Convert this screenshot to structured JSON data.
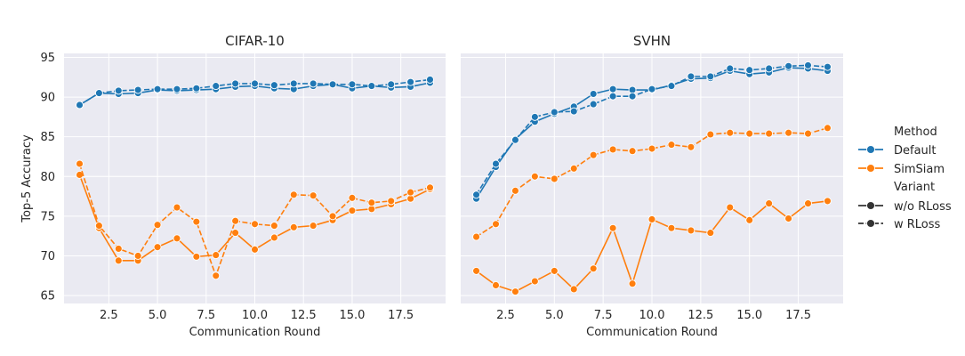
{
  "chart_data": {
    "type": "line",
    "ylabel": "Top-5 Accuracy",
    "xlabel": "Communication Round",
    "x": [
      1,
      2,
      3,
      4,
      5,
      6,
      7,
      8,
      9,
      10,
      11,
      12,
      13,
      14,
      15,
      16,
      17,
      18,
      19
    ],
    "xlim": [
      0.2,
      19.8
    ],
    "ylim": [
      64,
      95.5
    ],
    "xticks": [
      2.5,
      5.0,
      7.5,
      10.0,
      12.5,
      15.0,
      17.5
    ],
    "xtick_labels": [
      "2.5",
      "5.0",
      "7.5",
      "10.0",
      "12.5",
      "15.0",
      "17.5"
    ],
    "yticks": [
      65,
      70,
      75,
      80,
      85,
      90,
      95
    ],
    "ytick_labels": [
      "65",
      "70",
      "75",
      "80",
      "85",
      "90",
      "95"
    ],
    "grid": true,
    "legend": {
      "placement": "right",
      "method_title": "Method",
      "methods": [
        {
          "label": "Default",
          "color": "#1f77b4"
        },
        {
          "label": "SimSiam",
          "color": "#ff7f0e"
        }
      ],
      "variant_title": "Variant",
      "variants": [
        {
          "label": "w/o RLoss",
          "style": "solid"
        },
        {
          "label": "w RLoss",
          "style": "dashed"
        }
      ]
    },
    "panels": [
      {
        "title": "CIFAR-10",
        "series": [
          {
            "method": "Default",
            "variant": "w/o RLoss",
            "values": [
              89.0,
              90.5,
              90.4,
              90.5,
              90.9,
              90.8,
              90.9,
              91.0,
              91.3,
              91.4,
              91.1,
              91.0,
              91.4,
              91.6,
              91.1,
              91.4,
              91.2,
              91.3,
              91.8
            ]
          },
          {
            "method": "Default",
            "variant": "w RLoss",
            "values": [
              89.0,
              90.5,
              90.8,
              90.9,
              91.0,
              91.0,
              91.1,
              91.4,
              91.7,
              91.7,
              91.5,
              91.7,
              91.7,
              91.6,
              91.6,
              91.4,
              91.6,
              91.9,
              92.2
            ]
          },
          {
            "method": "SimSiam",
            "variant": "w/o RLoss",
            "values": [
              80.2,
              73.5,
              69.4,
              69.4,
              71.1,
              72.2,
              69.9,
              70.1,
              72.9,
              70.8,
              72.3,
              73.6,
              73.8,
              74.5,
              75.7,
              75.9,
              76.5,
              77.2,
              78.4
            ]
          },
          {
            "method": "SimSiam",
            "variant": "w RLoss",
            "values": [
              81.6,
              73.8,
              70.9,
              70.0,
              73.9,
              76.1,
              74.3,
              67.5,
              74.4,
              74.0,
              73.8,
              77.7,
              77.6,
              75.0,
              77.3,
              76.7,
              76.9,
              78.0,
              78.6
            ]
          }
        ]
      },
      {
        "title": "SVHN",
        "series": [
          {
            "method": "Default",
            "variant": "w/o RLoss",
            "values": [
              77.2,
              81.2,
              84.7,
              86.9,
              87.9,
              88.8,
              90.4,
              91.0,
              90.9,
              90.9,
              91.5,
              92.3,
              92.4,
              93.3,
              92.9,
              93.1,
              93.7,
              93.6,
              93.3
            ]
          },
          {
            "method": "Default",
            "variant": "w RLoss",
            "values": [
              77.7,
              81.6,
              84.6,
              87.5,
              88.1,
              88.2,
              89.1,
              90.1,
              90.1,
              91.0,
              91.4,
              92.6,
              92.6,
              93.6,
              93.4,
              93.6,
              93.9,
              94.0,
              93.8
            ]
          },
          {
            "method": "SimSiam",
            "variant": "w/o RLoss",
            "values": [
              68.1,
              66.3,
              65.5,
              66.8,
              68.1,
              65.8,
              68.4,
              73.5,
              66.5,
              74.6,
              73.5,
              73.2,
              72.9,
              76.1,
              74.5,
              76.6,
              74.7,
              76.6,
              76.9
            ]
          },
          {
            "method": "SimSiam",
            "variant": "w RLoss",
            "values": [
              72.4,
              74.0,
              78.2,
              80.0,
              79.7,
              81.0,
              82.7,
              83.4,
              83.2,
              83.5,
              84.0,
              83.7,
              85.3,
              85.5,
              85.4,
              85.4,
              85.5,
              85.4,
              86.1
            ]
          }
        ]
      }
    ]
  }
}
